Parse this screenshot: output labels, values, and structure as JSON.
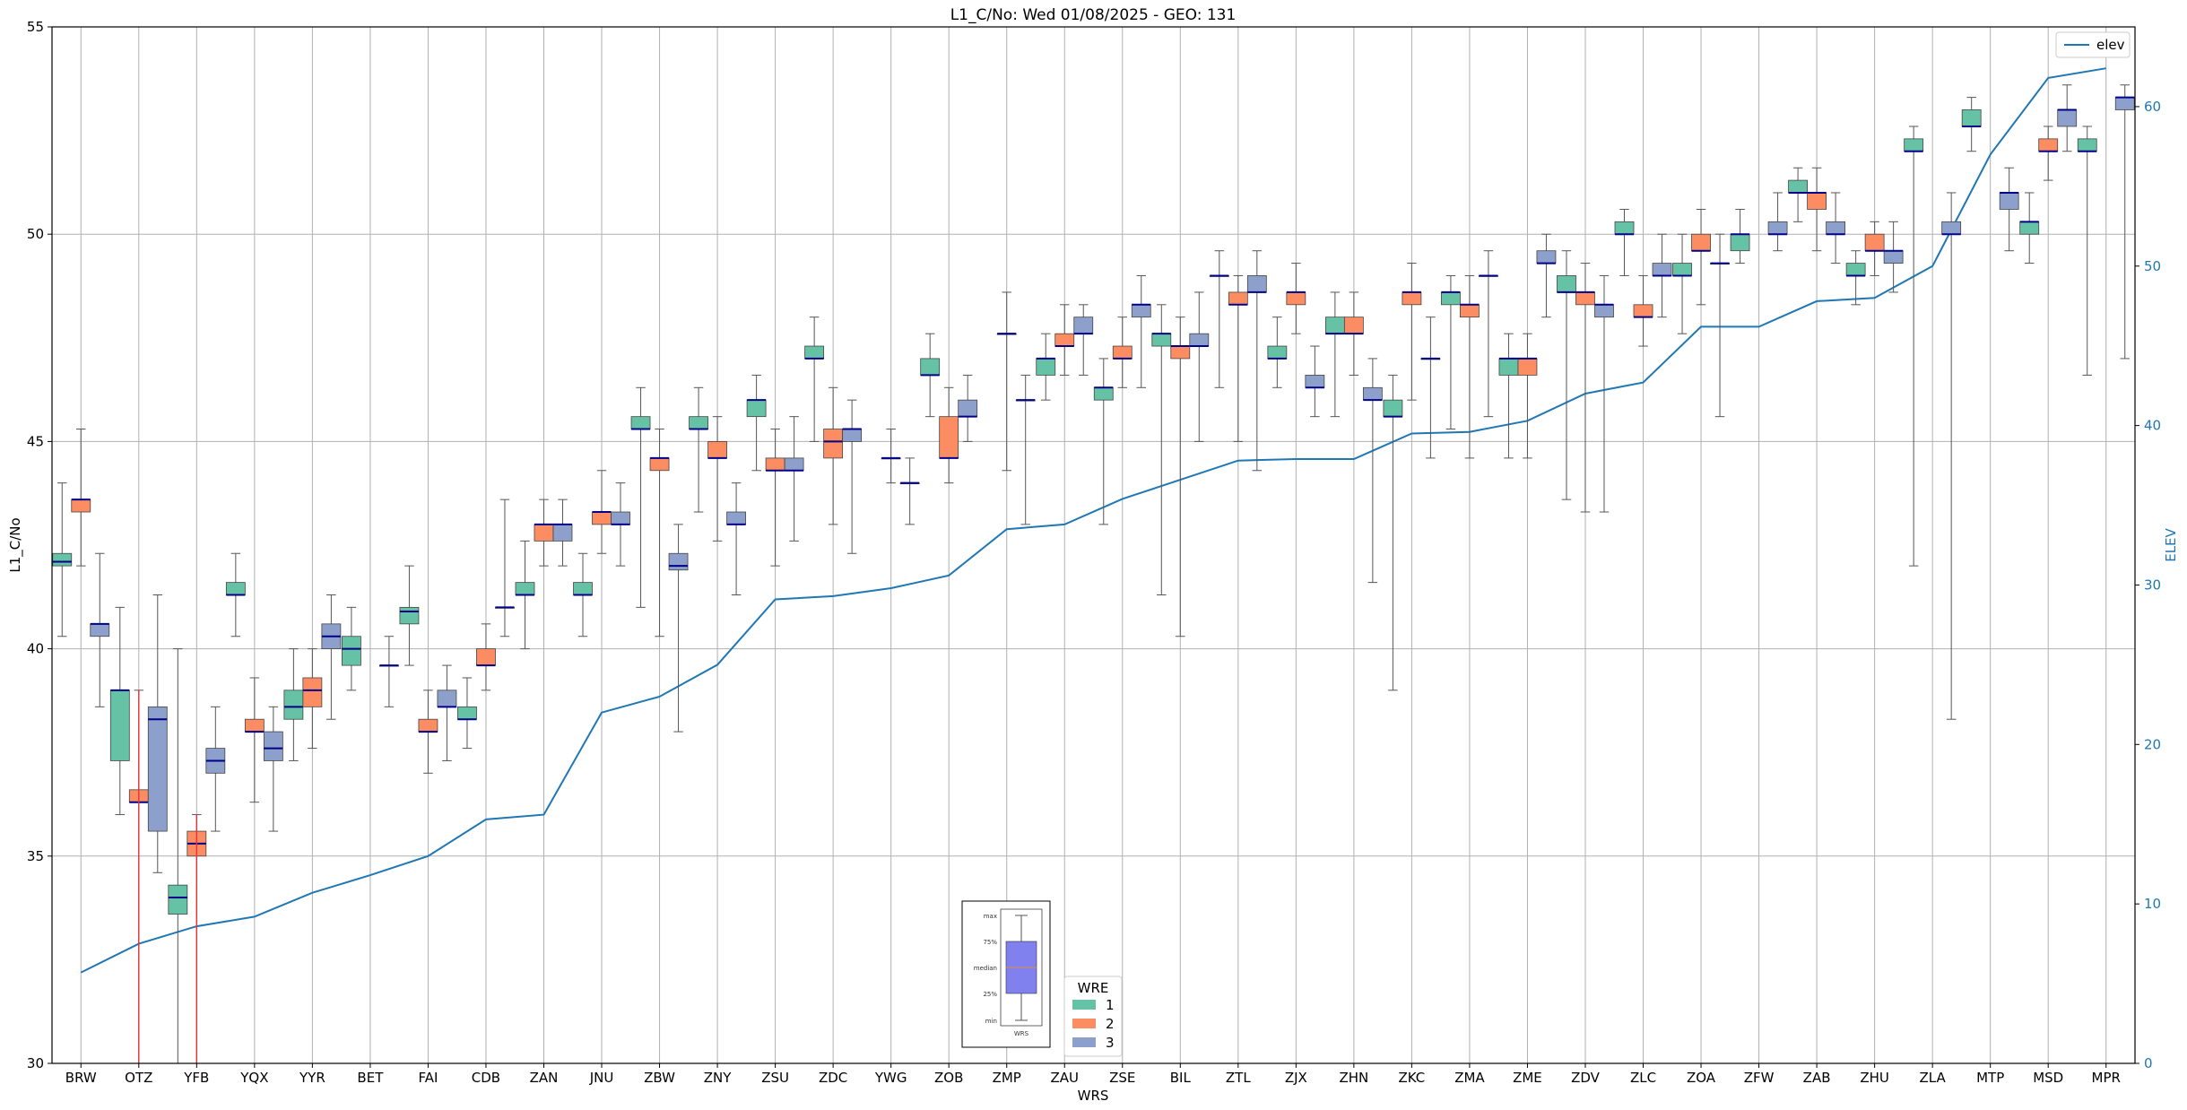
{
  "chart_data": {
    "type": "box",
    "title": "L1_C/No: Wed 01/08/2025 - GEO: 131",
    "xlabel": "WRS",
    "ylabel": "L1_C/No",
    "y2label": "ELEV",
    "ylim": [
      30,
      55
    ],
    "y2lim": [
      0,
      65
    ],
    "yticks": [
      30,
      35,
      40,
      45,
      50,
      55
    ],
    "y2ticks": [
      0,
      10,
      20,
      30,
      40,
      50,
      60
    ],
    "grid": true,
    "categories": [
      "BRW",
      "OTZ",
      "YFB",
      "YQX",
      "YYR",
      "BET",
      "FAI",
      "CDB",
      "ZAN",
      "JNU",
      "ZBW",
      "ZNY",
      "ZSU",
      "ZDC",
      "YWG",
      "ZOB",
      "ZMP",
      "ZAU",
      "ZSE",
      "BIL",
      "ZTL",
      "ZJX",
      "ZHN",
      "ZKC",
      "ZMA",
      "ZME",
      "ZDV",
      "ZLC",
      "ZOA",
      "ZFW",
      "ZAB",
      "ZHU",
      "ZLA",
      "MTP",
      "MSD",
      "MPR"
    ],
    "wre_legend": {
      "title": "WRE",
      "entries": [
        {
          "label": "1",
          "color": "#66c2a5"
        },
        {
          "label": "2",
          "color": "#fc8d62"
        },
        {
          "label": "3",
          "color": "#8da0cb"
        }
      ]
    },
    "elev_legend": {
      "label": "elev",
      "color": "#1f77b4"
    },
    "elev": [
      5.7,
      7.5,
      8.6,
      9.2,
      10.7,
      11.8,
      13.0,
      15.3,
      15.6,
      22.0,
      23.0,
      25.0,
      29.1,
      29.3,
      29.8,
      30.6,
      33.5,
      33.8,
      35.4,
      36.6,
      37.8,
      37.9,
      37.9,
      39.5,
      39.6,
      40.3,
      42.0,
      42.7,
      46.2,
      46.2,
      47.8,
      48.0,
      50.0,
      57.0,
      61.8,
      62.4
    ],
    "series": [
      {
        "name": "1",
        "boxes": [
          [
            40.3,
            42.0,
            42.1,
            42.3,
            44.0
          ],
          [
            36.0,
            37.3,
            39.0,
            39.0,
            41.0
          ],
          [
            30.0,
            33.6,
            34.0,
            34.3,
            40.0
          ],
          [
            40.3,
            41.3,
            41.3,
            41.6,
            42.3
          ],
          [
            37.3,
            38.3,
            38.6,
            39.0,
            40.0
          ],
          [
            39.0,
            39.6,
            40.0,
            40.3,
            41.0
          ],
          [
            39.6,
            40.6,
            40.9,
            41.0,
            42.0
          ],
          [
            37.6,
            38.3,
            38.3,
            38.6,
            39.3
          ],
          [
            40.0,
            41.3,
            41.3,
            41.6,
            42.6
          ],
          [
            40.3,
            41.3,
            41.3,
            41.6,
            42.3
          ],
          [
            41.0,
            45.3,
            45.3,
            45.6,
            46.3
          ],
          [
            43.3,
            45.3,
            45.3,
            45.6,
            46.3
          ],
          [
            44.3,
            45.6,
            46.0,
            46.0,
            46.6
          ],
          [
            45.0,
            47.0,
            47.0,
            47.3,
            48.0
          ],
          null,
          [
            45.6,
            46.6,
            46.6,
            47.0,
            47.6
          ],
          null,
          [
            46.0,
            46.6,
            47.0,
            47.0,
            47.6
          ],
          [
            43.0,
            46.0,
            46.3,
            46.3,
            47.0
          ],
          [
            41.3,
            47.3,
            47.6,
            47.6,
            48.3
          ],
          [
            46.3,
            49.0,
            49.0,
            49.0,
            49.6
          ],
          [
            46.3,
            47.0,
            47.0,
            47.3,
            48.0
          ],
          [
            45.6,
            47.6,
            47.6,
            48.0,
            48.6
          ],
          [
            39.0,
            45.6,
            45.6,
            46.0,
            46.6
          ],
          [
            45.3,
            48.3,
            48.6,
            48.6,
            49.0
          ],
          [
            44.6,
            46.6,
            47.0,
            47.0,
            47.6
          ],
          [
            43.6,
            48.6,
            48.6,
            49.0,
            49.6
          ],
          [
            49.0,
            50.0,
            50.0,
            50.3,
            50.6
          ],
          [
            47.6,
            49.0,
            49.0,
            49.3,
            50.0
          ],
          [
            49.3,
            49.6,
            50.0,
            50.0,
            50.6
          ],
          [
            50.3,
            51.0,
            51.0,
            51.3,
            51.6
          ],
          [
            48.3,
            49.0,
            49.0,
            49.3,
            49.6
          ],
          [
            42.0,
            52.0,
            52.0,
            52.3,
            52.6
          ],
          [
            52.0,
            52.6,
            52.6,
            53.0,
            53.3
          ],
          [
            49.3,
            50.0,
            50.3,
            50.3,
            51.0
          ],
          [
            46.6,
            52.0,
            52.0,
            52.3,
            52.6
          ]
        ]
      },
      {
        "name": "2",
        "boxes": [
          [
            42.0,
            43.3,
            43.6,
            43.6,
            45.3
          ],
          [
            30.0,
            36.3,
            36.3,
            36.6,
            39.0
          ],
          [
            30.0,
            35.0,
            35.3,
            35.6,
            36.0
          ],
          [
            36.3,
            38.0,
            38.0,
            38.3,
            39.3
          ],
          [
            37.6,
            38.6,
            39.0,
            39.3,
            40.0
          ],
          null,
          [
            37.0,
            38.0,
            38.0,
            38.3,
            39.0
          ],
          [
            39.0,
            39.6,
            39.6,
            40.0,
            40.6
          ],
          [
            42.0,
            42.6,
            43.0,
            43.0,
            43.6
          ],
          [
            42.3,
            43.0,
            43.3,
            43.3,
            44.3
          ],
          [
            40.3,
            44.3,
            44.6,
            44.6,
            45.3
          ],
          [
            42.6,
            44.6,
            44.6,
            45.0,
            45.6
          ],
          [
            42.0,
            44.3,
            44.3,
            44.6,
            45.3
          ],
          [
            43.0,
            44.6,
            45.0,
            45.3,
            46.3
          ],
          [
            44.0,
            44.6,
            44.6,
            44.6,
            45.3
          ],
          [
            44.0,
            44.6,
            44.6,
            45.6,
            46.3
          ],
          [
            44.3,
            47.6,
            47.6,
            47.6,
            48.6
          ],
          [
            46.6,
            47.3,
            47.3,
            47.6,
            48.3
          ],
          [
            46.3,
            47.0,
            47.0,
            47.3,
            48.0
          ],
          [
            40.3,
            47.0,
            47.3,
            47.3,
            48.0
          ],
          [
            45.0,
            48.3,
            48.3,
            48.6,
            49.0
          ],
          [
            47.6,
            48.3,
            48.6,
            48.6,
            49.3
          ],
          [
            46.6,
            47.6,
            47.6,
            48.0,
            48.6
          ],
          [
            46.0,
            48.3,
            48.6,
            48.6,
            49.3
          ],
          [
            44.6,
            48.0,
            48.3,
            48.3,
            49.0
          ],
          [
            44.6,
            46.6,
            47.0,
            47.0,
            47.6
          ],
          [
            43.3,
            48.3,
            48.6,
            48.6,
            49.3
          ],
          [
            47.3,
            48.0,
            48.0,
            48.3,
            49.0
          ],
          [
            48.3,
            49.6,
            49.6,
            50.0,
            50.6
          ],
          null,
          [
            49.6,
            50.6,
            51.0,
            51.0,
            51.6
          ],
          [
            49.0,
            49.6,
            49.6,
            50.0,
            50.3
          ],
          null,
          null,
          [
            51.3,
            52.0,
            52.0,
            52.3,
            52.6
          ],
          null
        ]
      },
      {
        "name": "3",
        "boxes": [
          [
            38.6,
            40.3,
            40.6,
            40.6,
            42.3
          ],
          [
            34.6,
            35.6,
            38.3,
            38.6,
            41.3
          ],
          [
            35.6,
            37.0,
            37.3,
            37.6,
            38.6
          ],
          [
            35.6,
            37.3,
            37.6,
            38.0,
            38.6
          ],
          [
            38.3,
            40.0,
            40.3,
            40.6,
            41.3
          ],
          [
            38.6,
            39.6,
            39.6,
            39.6,
            40.3
          ],
          [
            37.3,
            38.6,
            38.6,
            39.0,
            39.6
          ],
          [
            40.3,
            41.0,
            41.0,
            41.0,
            43.6
          ],
          [
            42.0,
            42.6,
            43.0,
            43.0,
            43.6
          ],
          [
            42.0,
            43.0,
            43.0,
            43.3,
            44.0
          ],
          [
            38.0,
            41.9,
            42.0,
            42.3,
            43.0
          ],
          [
            41.3,
            43.0,
            43.0,
            43.3,
            44.0
          ],
          [
            42.6,
            44.3,
            44.3,
            44.6,
            45.6
          ],
          [
            42.3,
            45.0,
            45.3,
            45.3,
            46.0
          ],
          [
            43.0,
            44.0,
            44.0,
            44.0,
            44.6
          ],
          [
            45.0,
            45.6,
            45.6,
            46.0,
            46.6
          ],
          [
            43.0,
            46.0,
            46.0,
            46.0,
            46.6
          ],
          [
            46.6,
            47.6,
            47.6,
            48.0,
            48.3
          ],
          [
            46.3,
            48.0,
            48.3,
            48.3,
            49.0
          ],
          [
            45.0,
            47.3,
            47.3,
            47.6,
            48.6
          ],
          [
            44.3,
            48.6,
            48.6,
            49.0,
            49.6
          ],
          [
            45.6,
            46.3,
            46.3,
            46.6,
            47.3
          ],
          [
            41.6,
            46.0,
            46.0,
            46.3,
            47.0
          ],
          [
            44.6,
            47.0,
            47.0,
            47.0,
            48.0
          ],
          [
            45.6,
            49.0,
            49.0,
            49.0,
            49.6
          ],
          [
            48.0,
            49.3,
            49.3,
            49.6,
            50.0
          ],
          [
            43.3,
            48.0,
            48.3,
            48.3,
            49.0
          ],
          [
            48.0,
            49.0,
            49.0,
            49.3,
            50.0
          ],
          [
            45.6,
            49.3,
            49.3,
            49.3,
            50.0
          ],
          [
            49.6,
            50.0,
            50.0,
            50.3,
            51.0
          ],
          [
            49.3,
            50.0,
            50.0,
            50.3,
            51.0
          ],
          [
            48.6,
            49.3,
            49.6,
            49.6,
            50.3
          ],
          [
            38.3,
            50.0,
            50.0,
            50.3,
            51.0
          ],
          [
            49.6,
            50.6,
            51.0,
            51.0,
            51.6
          ],
          [
            52.0,
            52.6,
            53.0,
            53.0,
            53.6
          ],
          [
            47.0,
            53.0,
            53.3,
            53.3,
            53.6
          ]
        ]
      }
    ],
    "outlier_whiskers": [
      {
        "category": "OTZ",
        "series": "2",
        "low": 30,
        "high": 39.0,
        "color": "#e8333a"
      },
      {
        "category": "YFB",
        "series": "2",
        "low": 30,
        "high": 36.0,
        "color": "#e8333a"
      }
    ],
    "explainer_inset": {
      "labels": [
        "max",
        "75%",
        "median",
        "25%",
        "min"
      ],
      "xlabel": "WRS"
    }
  }
}
